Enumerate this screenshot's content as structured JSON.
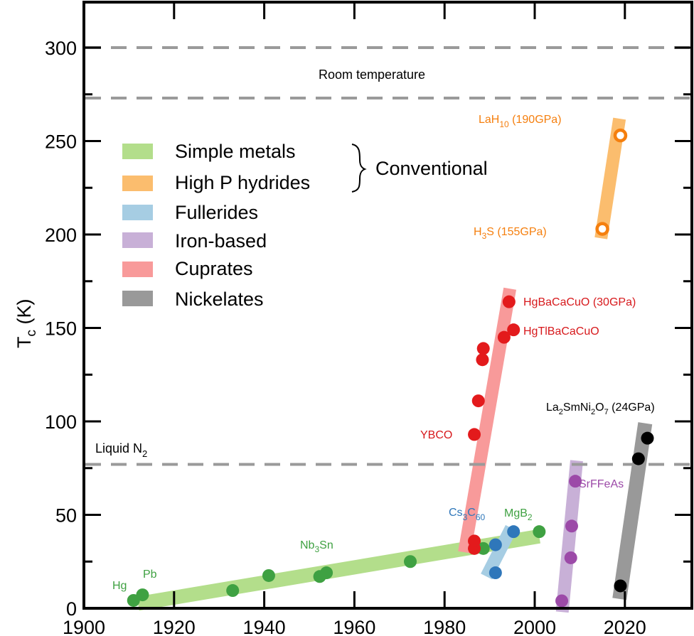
{
  "chart_data": {
    "type": "scatter",
    "title": "",
    "xlabel": "",
    "ylabel": "T",
    "ylabel_subscript": "c",
    "ylabel_unit": " (K)",
    "xlim": [
      1900,
      2035
    ],
    "ylim": [
      0,
      323.5
    ],
    "grid": false,
    "x_ticks": [
      1900,
      1920,
      1940,
      1960,
      1980,
      2000,
      2020
    ],
    "x_tick_labels": [
      "1900",
      "1920",
      "1940",
      "1960",
      "1980",
      "2000",
      "2020"
    ],
    "y_ticks": [
      0,
      50,
      100,
      150,
      200,
      250,
      300
    ],
    "y_tick_labels": [
      "0",
      "50",
      "100",
      "150",
      "200",
      "250",
      "300"
    ],
    "y_minor_ticks": [
      25,
      75,
      125,
      175,
      225,
      275
    ],
    "reference_lines": [
      {
        "name": "room-temperature-upper",
        "y": 300,
        "label": ""
      },
      {
        "name": "room-temperature",
        "y": 273,
        "label": "Room temperature"
      },
      {
        "name": "liquid-n2",
        "y": 77,
        "label": "Liquid N",
        "label_subscript": "2"
      }
    ],
    "legend": {
      "position": "upper-left",
      "group_label": "Conventional",
      "entries": [
        {
          "label": "Simple metals",
          "color": "#b3de8b"
        },
        {
          "label": "High P hydrides",
          "color": "#fbbd6e"
        },
        {
          "label": "Fullerides",
          "color": "#a6cde3"
        },
        {
          "label": "Iron-based",
          "color": "#c8b0d7"
        },
        {
          "label": "Cuprates",
          "color": "#f89a9a"
        },
        {
          "label": "Nickelates",
          "color": "#999999"
        }
      ]
    },
    "series": [
      {
        "name": "Simple metals",
        "point_color": "#3fa142",
        "band_color": "#b3de8b",
        "marker": "filled",
        "x": [
          1911,
          1913,
          1933,
          1941,
          1952.3,
          1953.8,
          1972.4,
          1988.6,
          2001
        ],
        "y": [
          4.2,
          7.2,
          9.5,
          17.5,
          17,
          19,
          25,
          32,
          41
        ]
      },
      {
        "name": "High P hydrides",
        "point_color": "#f57f0e",
        "band_color": "#fbbd6e",
        "marker": "open",
        "x": [
          2015,
          2019
        ],
        "y": [
          203,
          253
        ]
      },
      {
        "name": "Fullerides",
        "point_color": "#2f77ba",
        "band_color": "#a6cde3",
        "marker": "filled",
        "x": [
          1991.3,
          1991.3,
          1995.3
        ],
        "y": [
          19,
          34,
          41
        ]
      },
      {
        "name": "Iron-based",
        "point_color": "#9c4aa8",
        "band_color": "#c8b0d7",
        "marker": "filled",
        "x": [
          2006,
          2008,
          2008.2,
          2009
        ],
        "y": [
          4,
          27,
          44,
          68
        ]
      },
      {
        "name": "Cuprates",
        "point_color": "#e31a1c",
        "band_color": "#f89a9a",
        "marker": "filled",
        "x": [
          1986.6,
          1986.6,
          1986.6,
          1987.5,
          1988.4,
          1988.6,
          1993.2,
          1994.3,
          1995.3
        ],
        "y": [
          32,
          36,
          93,
          111,
          133,
          139,
          145,
          164,
          149
        ]
      },
      {
        "name": "Nickelates",
        "point_color": "#000000",
        "band_color": "#999999",
        "marker": "filled",
        "x": [
          2019,
          2023,
          2025
        ],
        "y": [
          12,
          80,
          91
        ]
      }
    ],
    "annotations": [
      {
        "name": "hg",
        "text": "Hg",
        "sub": "",
        "rest": "",
        "color": "#3fa142"
      },
      {
        "name": "pb",
        "text": "Pb",
        "sub": "",
        "rest": "",
        "color": "#3fa142"
      },
      {
        "name": "nb3sn",
        "text": "Nb",
        "sub": "3",
        "rest": "Sn",
        "color": "#3fa142"
      },
      {
        "name": "mgb2",
        "text": "MgB",
        "sub": "2",
        "rest": "",
        "color": "#3fa142"
      },
      {
        "name": "cs3c60",
        "text": "Cs",
        "sub": "3",
        "rest": "C",
        "sub2": "60",
        "color": "#2f77ba"
      },
      {
        "name": "ybco",
        "text": "YBCO",
        "sub": "",
        "rest": "",
        "color": "#d7191c"
      },
      {
        "name": "hgbacacuo",
        "text": "HgBaCaCuO (30GPa)",
        "sub": "",
        "rest": "",
        "color": "#d7191c"
      },
      {
        "name": "hgtlbacacuo",
        "text": "HgTlBaCaCuO",
        "sub": "",
        "rest": "",
        "color": "#d7191c"
      },
      {
        "name": "srffeas",
        "text": "SrFFeAs",
        "sub": "",
        "rest": "",
        "color": "#9c4aa8"
      },
      {
        "name": "la2smni2o7",
        "text": "La",
        "sub": "2",
        "rest": "SmNi",
        "sub2": "2",
        "rest2": "O",
        "sub3": "7",
        "rest3": " (24GPa)",
        "color": "#000000"
      },
      {
        "name": "lah10",
        "text": "LaH",
        "sub": "10",
        "rest": " (190GPa)",
        "color": "#f57f0e"
      },
      {
        "name": "h3s",
        "text": "H",
        "sub": "3",
        "rest": "S (155GPa)",
        "color": "#f57f0e"
      }
    ]
  }
}
